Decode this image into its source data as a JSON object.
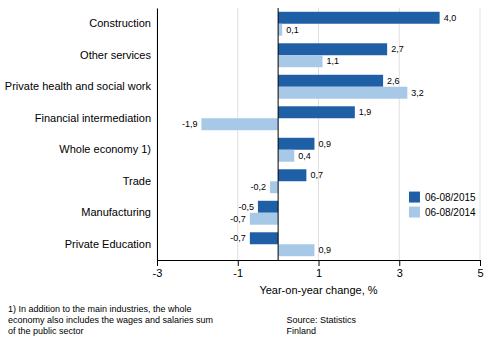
{
  "chart_data": {
    "type": "bar",
    "orientation": "horizontal",
    "categories": [
      "Private Education",
      "Manufacturing",
      "Trade",
      "Whole economy 1)",
      "Financial intermediation",
      "Private health and social work",
      "Other services",
      "Construction"
    ],
    "series": [
      {
        "name": "06-08/2015",
        "color": "#1F5FA6",
        "values": [
          -0.7,
          -0.5,
          0.7,
          0.9,
          1.9,
          2.6,
          2.7,
          4.0
        ],
        "value_labels": [
          "-0,7",
          "-0,5",
          "0,7",
          "0,9",
          "1,9",
          "2,6",
          "2,7",
          "4,0"
        ]
      },
      {
        "name": "06-08/2014",
        "color": "#A8C8E8",
        "values": [
          0.9,
          -0.7,
          -0.2,
          0.4,
          -1.9,
          3.2,
          1.1,
          0.1
        ],
        "value_labels": [
          "0,9",
          "-0,7",
          "-0,2",
          "0,4",
          "-1,9",
          "3,2",
          "1,1",
          "0,1"
        ]
      }
    ],
    "xlabel": "Year-on-year change, %",
    "xlim": [
      -3,
      5
    ],
    "xticks": [
      -3,
      -1,
      1,
      3,
      5
    ],
    "grid": true,
    "legend": "lower right",
    "data_labels": true,
    "annotations": [
      {
        "text": "1) In addition to the main industries, the whole\neconomy also includes the wages and salaries sum\nof the public sector"
      },
      {
        "text": "Source: Statistics\nFinland"
      }
    ]
  }
}
